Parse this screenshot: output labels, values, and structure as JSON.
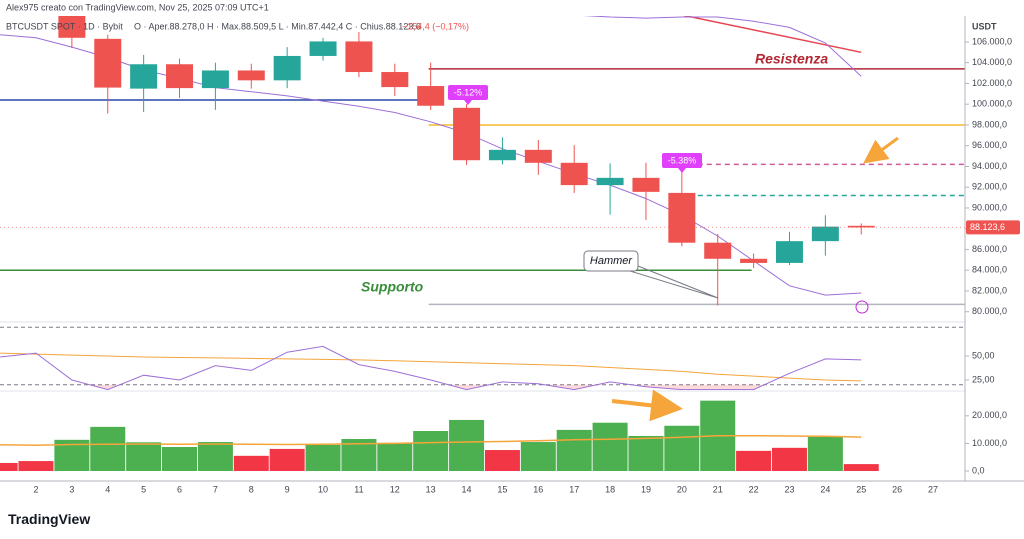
{
  "chart_data": {
    "type": "candlestick",
    "header": "Alex975 creato con TradingView.com, Nov 25, 2025 07:09 UTC+1",
    "legend": {
      "symbol": "BTCUSDT SPOT · 1D · Bybit",
      "ohlc": "O · Aper.88.278,0   H · Max.88.509,5   L · Min.87.442,4   C · Chius.88.123,6",
      "change": "−154,4 (−0,17%)"
    },
    "currency": "USDT",
    "brand": "TradingView",
    "categories": [
      null,
      "2",
      "3",
      "4",
      "5",
      "6",
      "7",
      "8",
      "9",
      "10",
      "11",
      "12",
      "13",
      "14",
      "15",
      "16",
      "17",
      "18",
      "19",
      "20",
      "21",
      "22",
      "23",
      "24",
      "25",
      "26",
      "27"
    ],
    "open": [
      null,
      null,
      108500,
      106300,
      101500,
      103850,
      101550,
      103250,
      102300,
      104650,
      106050,
      103100,
      101750,
      99650,
      94600,
      95600,
      94350,
      92200,
      92900,
      91450,
      86650,
      85100,
      84700,
      86800,
      88278,
      null,
      null
    ],
    "high": [
      null,
      null,
      109000,
      106700,
      104750,
      104400,
      104000,
      103900,
      105500,
      106400,
      106950,
      103900,
      104000,
      100000,
      96800,
      96550,
      96050,
      94300,
      94350,
      93650,
      87500,
      85600,
      87700,
      89300,
      88509.5,
      null,
      null
    ],
    "low": [
      null,
      null,
      105400,
      99100,
      99250,
      100600,
      99450,
      101500,
      101550,
      104200,
      102600,
      100800,
      99450,
      94150,
      94200,
      93200,
      91450,
      89350,
      88850,
      86300,
      80600,
      84200,
      84500,
      85400,
      87442.4,
      null,
      null
    ],
    "close": [
      null,
      null,
      106400,
      101600,
      103850,
      101550,
      103250,
      102300,
      104650,
      106050,
      103100,
      101650,
      99850,
      94600,
      95600,
      94350,
      92200,
      92900,
      91550,
      86650,
      85100,
      84700,
      86800,
      88200,
      88123.6,
      null,
      null
    ],
    "up_color": "#26a69a",
    "down_color": "#ef5350",
    "ylim": [
      79200,
      108500
    ],
    "yticks": [
      {
        "value": 80000,
        "label": "80.000,0"
      },
      {
        "value": 82000,
        "label": "82.000,0"
      },
      {
        "value": 84000,
        "label": "84.000,0"
      },
      {
        "value": 86000,
        "label": "86.000,0"
      },
      {
        "value": 88000,
        "label": "88.000,0"
      },
      {
        "value": 90000,
        "label": "90.000,0"
      },
      {
        "value": 92000,
        "label": "92.000,0"
      },
      {
        "value": 94000,
        "label": "94.000,0"
      },
      {
        "value": 96000,
        "label": "96.000,0"
      },
      {
        "value": 98000,
        "label": "98.000,0"
      },
      {
        "value": 100000,
        "label": "100.000,0"
      },
      {
        "value": 102000,
        "label": "102.000,0"
      },
      {
        "value": 104000,
        "label": "104.000,0"
      },
      {
        "value": 106000,
        "label": "106.000,0"
      }
    ],
    "last_price": {
      "value": 88123.6,
      "label": "88.123,6"
    },
    "ma_lines": [
      {
        "color": "#9c6fd6",
        "values": [
          106700,
          106400,
          105500,
          104500,
          103300,
          102500,
          101600,
          101200,
          100800,
          100300,
          99800,
          99200,
          98300,
          97200,
          95700,
          94500,
          93300,
          92200,
          90900,
          89300,
          87300,
          84900,
          82500,
          81600,
          81800,
          null,
          null
        ]
      },
      {
        "color": "#9c6fd6",
        "values": [
          null,
          null,
          null,
          null,
          null,
          null,
          null,
          null,
          null,
          null,
          null,
          null,
          null,
          null,
          null,
          108800,
          108600,
          108400,
          108300,
          108400,
          108400,
          108000,
          107400,
          105900,
          102700,
          null,
          null
        ]
      }
    ],
    "levels": [
      {
        "value": 103400,
        "color": "#b22833",
        "dashed": false,
        "start": "13",
        "end": null
      },
      {
        "value": 98000,
        "color": "#f5b82e",
        "dashed": false,
        "start": "13",
        "end": null
      },
      {
        "value": 100400,
        "color": "#2946a8",
        "dashed": false,
        "start": null,
        "end": "13"
      },
      {
        "value": 84000,
        "color": "#388e3c",
        "dashed": false,
        "start": null,
        "end": "22"
      },
      {
        "value": 94200,
        "color": "#d05a9a",
        "dashed": true,
        "start": "20",
        "end": null
      },
      {
        "value": 91200,
        "color": "#26a69a",
        "dashed": true,
        "start": "20",
        "end": null
      },
      {
        "value": 80700,
        "color": "#b2b5be",
        "dashed": false,
        "start": "13",
        "end": null
      }
    ],
    "trendline": {
      "color": "#e8434f",
      "points": [
        {
          "category": "20",
          "value": 108600
        },
        {
          "category": "25",
          "value": 105000
        }
      ]
    },
    "annotations": {
      "resistance": "Resistenza",
      "support": "Supporto",
      "hammer": "Hammer",
      "drop1": "-5.12%",
      "drop2": "-5.38%"
    },
    "rsi": {
      "type": "line",
      "color": "#9c6fd6",
      "ma_color": "#f5a53a",
      "values": [
        49,
        53,
        25,
        15,
        30,
        25,
        40,
        35,
        54,
        60,
        41,
        34,
        25,
        15,
        23,
        21,
        15,
        23,
        18,
        15,
        15,
        15,
        32,
        47,
        46,
        null,
        null
      ],
      "ma": [
        53,
        52,
        51,
        50,
        49,
        48.5,
        48,
        47.5,
        47,
        46.5,
        46,
        45,
        44,
        43,
        42,
        41,
        40,
        38,
        36,
        34,
        31,
        29,
        27,
        25,
        24,
        null,
        null
      ],
      "bands": [
        80,
        20
      ],
      "ylim": [
        13.5,
        85.5
      ],
      "yticks": [
        {
          "value": 25,
          "label": "25,00"
        },
        {
          "value": 50,
          "label": "50,00"
        }
      ]
    },
    "volume": {
      "type": "bar",
      "ma_color": "#f5a53a",
      "values": [
        2900,
        3600,
        11300,
        16000,
        10400,
        8700,
        10500,
        5500,
        8000,
        9500,
        11600,
        10200,
        14500,
        18500,
        7600,
        10500,
        14900,
        17500,
        12700,
        16400,
        25500,
        7300,
        8400,
        12400,
        2500,
        null,
        null
      ],
      "colors": [
        "#f23645",
        "#f23645",
        "#4caf50",
        "#4caf50",
        "#4caf50",
        "#4caf50",
        "#4caf50",
        "#f23645",
        "#f23645",
        "#4caf50",
        "#4caf50",
        "#4caf50",
        "#4caf50",
        "#4caf50",
        "#f23645",
        "#4caf50",
        "#4caf50",
        "#4caf50",
        "#4caf50",
        "#4caf50",
        "#4caf50",
        "#f23645",
        "#f23645",
        "#4caf50",
        "#f23645",
        null,
        null
      ],
      "ma": [
        9500,
        9300,
        9600,
        9700,
        9800,
        9700,
        9800,
        9700,
        9600,
        9700,
        9900,
        10000,
        10300,
        10500,
        10700,
        11000,
        11300,
        11500,
        11800,
        12200,
        12800,
        12800,
        12700,
        12600,
        12300,
        null,
        null
      ],
      "ylim": [
        0,
        29000
      ],
      "yticks": [
        {
          "value": 0,
          "label": "0,0"
        },
        {
          "value": 10000,
          "label": "10.000,0"
        },
        {
          "value": 20000,
          "label": "20.000,0"
        }
      ]
    }
  }
}
